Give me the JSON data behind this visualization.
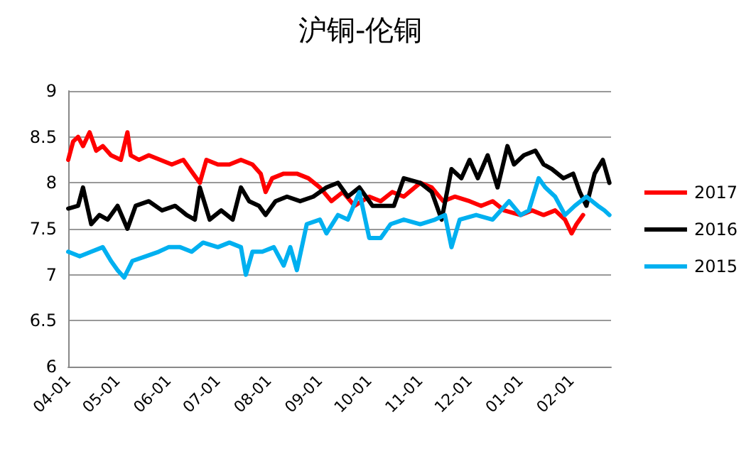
{
  "chart_data": {
    "type": "line",
    "title": "沪铜-伦铜",
    "xlim": [
      "2017-04-01",
      "2018-02-25"
    ],
    "xticks": [
      {
        "value": "2017-04-01",
        "label": "04-01"
      },
      {
        "value": "2017-05-01",
        "label": "05-01"
      },
      {
        "value": "2017-06-01",
        "label": "06-01"
      },
      {
        "value": "2017-07-01",
        "label": "07-01"
      },
      {
        "value": "2017-08-01",
        "label": "08-01"
      },
      {
        "value": "2017-09-01",
        "label": "09-01"
      },
      {
        "value": "2017-10-01",
        "label": "10-01"
      },
      {
        "value": "2017-11-01",
        "label": "11-01"
      },
      {
        "value": "2017-12-01",
        "label": "12-01"
      },
      {
        "value": "2018-01-01",
        "label": "01-01"
      },
      {
        "value": "2018-02-01",
        "label": "02-01"
      }
    ],
    "ylim": [
      6,
      9
    ],
    "yticks": [
      6,
      6.5,
      7,
      7.5,
      8,
      8.5,
      9
    ],
    "grid": "y",
    "legend": "right",
    "marker": "none",
    "line_style": "solid",
    "series": [
      {
        "name": "2017",
        "color": "#ff0000",
        "x": [
          "2017-04-01",
          "2017-04-04",
          "2017-04-07",
          "2017-04-10",
          "2017-04-14",
          "2017-04-18",
          "2017-04-22",
          "2017-04-27",
          "2017-05-03",
          "2017-05-07",
          "2017-05-09",
          "2017-05-14",
          "2017-05-20",
          "2017-05-27",
          "2017-06-03",
          "2017-06-10",
          "2017-06-16",
          "2017-06-20",
          "2017-06-24",
          "2017-07-01",
          "2017-07-08",
          "2017-07-15",
          "2017-07-22",
          "2017-07-27",
          "2017-07-30",
          "2017-08-03",
          "2017-08-10",
          "2017-08-18",
          "2017-08-25",
          "2017-09-01",
          "2017-09-08",
          "2017-09-15",
          "2017-09-22",
          "2017-10-01",
          "2017-10-08",
          "2017-10-15",
          "2017-10-22",
          "2017-11-01",
          "2017-11-08",
          "2017-11-15",
          "2017-11-22",
          "2017-12-01",
          "2017-12-08",
          "2017-12-15",
          "2017-12-22",
          "2018-01-01",
          "2018-01-08",
          "2018-01-15",
          "2018-01-22",
          "2018-01-28",
          "2018-02-01",
          "2018-02-04",
          "2018-02-08"
        ],
        "values": [
          8.25,
          8.45,
          8.5,
          8.4,
          8.55,
          8.35,
          8.4,
          8.3,
          8.25,
          8.55,
          8.3,
          8.25,
          8.3,
          8.25,
          8.2,
          8.25,
          8.1,
          8.0,
          8.25,
          8.2,
          8.2,
          8.25,
          8.2,
          8.1,
          7.9,
          8.05,
          8.1,
          8.1,
          8.05,
          7.95,
          7.8,
          7.9,
          7.75,
          7.85,
          7.8,
          7.9,
          7.85,
          8.0,
          7.95,
          7.8,
          7.85,
          7.8,
          7.75,
          7.8,
          7.7,
          7.65,
          7.7,
          7.65,
          7.7,
          7.6,
          7.45,
          7.55,
          7.65
        ]
      },
      {
        "name": "2016",
        "color": "#000000",
        "x": [
          "2017-04-01",
          "2017-04-07",
          "2017-04-10",
          "2017-04-15",
          "2017-04-20",
          "2017-04-25",
          "2017-05-01",
          "2017-05-07",
          "2017-05-12",
          "2017-05-20",
          "2017-05-28",
          "2017-06-05",
          "2017-06-12",
          "2017-06-17",
          "2017-06-20",
          "2017-06-26",
          "2017-07-03",
          "2017-07-10",
          "2017-07-15",
          "2017-07-20",
          "2017-07-26",
          "2017-07-30",
          "2017-08-05",
          "2017-08-12",
          "2017-08-20",
          "2017-08-28",
          "2017-09-05",
          "2017-09-12",
          "2017-09-18",
          "2017-09-25",
          "2017-10-03",
          "2017-10-10",
          "2017-10-16",
          "2017-10-22",
          "2017-11-01",
          "2017-11-08",
          "2017-11-14",
          "2017-11-20",
          "2017-11-26",
          "2017-12-01",
          "2017-12-06",
          "2017-12-12",
          "2017-12-18",
          "2017-12-24",
          "2017-12-28",
          "2018-01-03",
          "2018-01-10",
          "2018-01-15",
          "2018-01-20",
          "2018-01-27",
          "2018-02-02",
          "2018-02-06",
          "2018-02-10",
          "2018-02-15",
          "2018-02-20",
          "2018-02-24"
        ],
        "values": [
          7.72,
          7.75,
          7.95,
          7.55,
          7.65,
          7.6,
          7.75,
          7.5,
          7.75,
          7.8,
          7.7,
          7.75,
          7.65,
          7.6,
          7.95,
          7.6,
          7.7,
          7.6,
          7.95,
          7.8,
          7.75,
          7.65,
          7.8,
          7.85,
          7.8,
          7.85,
          7.95,
          8.0,
          7.85,
          7.95,
          7.75,
          7.75,
          7.75,
          8.05,
          8.0,
          7.9,
          7.6,
          8.15,
          8.05,
          8.25,
          8.05,
          8.3,
          7.95,
          8.4,
          8.2,
          8.3,
          8.35,
          8.2,
          8.15,
          8.05,
          8.1,
          7.9,
          7.75,
          8.1,
          8.25,
          8.0
        ]
      },
      {
        "name": "2015",
        "color": "#00b0f0",
        "x": [
          "2017-04-01",
          "2017-04-08",
          "2017-04-15",
          "2017-04-22",
          "2017-04-27",
          "2017-05-01",
          "2017-05-05",
          "2017-05-10",
          "2017-05-18",
          "2017-05-26",
          "2017-06-01",
          "2017-06-08",
          "2017-06-15",
          "2017-06-22",
          "2017-07-01",
          "2017-07-08",
          "2017-07-15",
          "2017-07-18",
          "2017-07-22",
          "2017-07-28",
          "2017-08-04",
          "2017-08-10",
          "2017-08-14",
          "2017-08-18",
          "2017-08-24",
          "2017-09-01",
          "2017-09-05",
          "2017-09-12",
          "2017-09-18",
          "2017-09-25",
          "2017-10-01",
          "2017-10-08",
          "2017-10-14",
          "2017-10-22",
          "2017-11-01",
          "2017-11-10",
          "2017-11-16",
          "2017-11-20",
          "2017-11-25",
          "2017-12-05",
          "2017-12-15",
          "2017-12-25",
          "2018-01-01",
          "2018-01-06",
          "2018-01-12",
          "2018-01-16",
          "2018-01-22",
          "2018-01-28",
          "2018-02-03",
          "2018-02-10",
          "2018-02-17",
          "2018-02-21",
          "2018-02-24"
        ],
        "values": [
          7.25,
          7.2,
          7.25,
          7.3,
          7.15,
          7.05,
          6.97,
          7.15,
          7.2,
          7.25,
          7.3,
          7.3,
          7.25,
          7.35,
          7.3,
          7.35,
          7.3,
          7.0,
          7.25,
          7.25,
          7.3,
          7.1,
          7.3,
          7.05,
          7.55,
          7.6,
          7.45,
          7.65,
          7.6,
          7.9,
          7.4,
          7.4,
          7.55,
          7.6,
          7.55,
          7.6,
          7.65,
          7.3,
          7.6,
          7.65,
          7.6,
          7.8,
          7.65,
          7.7,
          8.05,
          7.95,
          7.85,
          7.65,
          7.75,
          7.85,
          7.75,
          7.7,
          7.65
        ]
      }
    ]
  }
}
